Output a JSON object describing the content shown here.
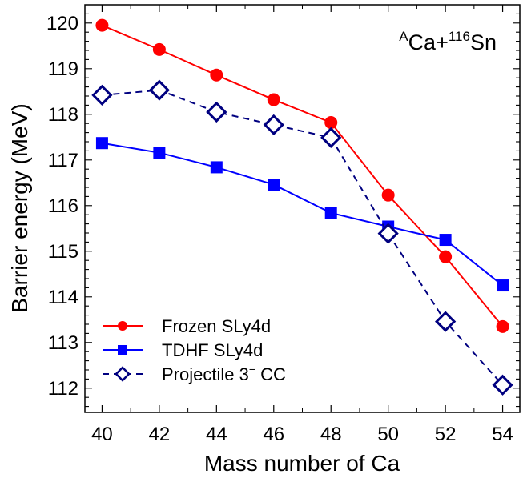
{
  "chart_data": {
    "type": "line",
    "title": "",
    "annotation": {
      "mass_superscript": "A",
      "text1": "Ca+",
      "superscript2": "116",
      "text2": "Sn"
    },
    "xlabel": "Mass number of Ca",
    "ylabel": "Barrier energy (MeV)",
    "xlim": [
      39.4,
      54.6
    ],
    "ylim": [
      111.47,
      120.4
    ],
    "xticks": [
      40,
      42,
      44,
      46,
      48,
      50,
      52,
      54
    ],
    "yticks": [
      112,
      113,
      114,
      115,
      116,
      117,
      118,
      119,
      120
    ],
    "grid": false,
    "legend_placement": "bottom-left",
    "x": [
      40,
      42,
      44,
      46,
      48,
      50,
      52,
      54
    ],
    "series": [
      {
        "name": "Frozen SLy4d",
        "color": "#ff0000",
        "marker": "circle",
        "dash": false,
        "values": [
          119.95,
          119.42,
          118.86,
          118.32,
          117.82,
          116.23,
          114.88,
          113.35
        ]
      },
      {
        "name": "TDHF SLy4d",
        "color": "#0000ff",
        "marker": "square",
        "dash": false,
        "values": [
          117.37,
          117.16,
          116.84,
          116.46,
          115.84,
          115.54,
          115.25,
          114.25
        ]
      },
      {
        "name": "Projectile 3",
        "name_superscript": "−",
        "name_suffix": " CC",
        "color": "#000080",
        "marker": "diamond-open",
        "dash": true,
        "values": [
          118.42,
          118.53,
          118.05,
          117.77,
          117.49,
          115.39,
          113.46,
          112.07
        ]
      }
    ]
  }
}
